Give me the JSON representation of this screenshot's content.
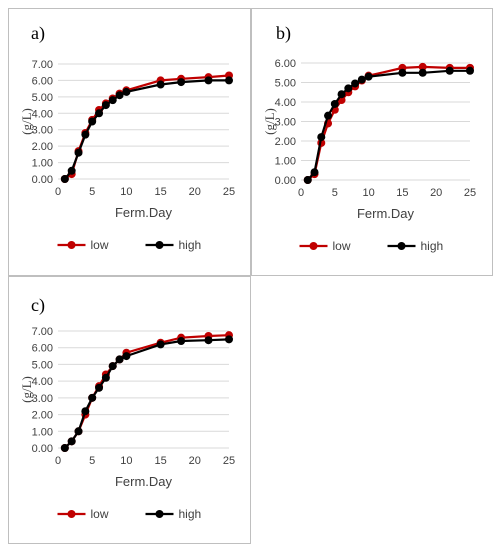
{
  "chart_data": [
    {
      "panel": "a)",
      "type": "line",
      "xlabel": "Ferm.Day",
      "ylabel": "(g/L)",
      "xlim": [
        0,
        25
      ],
      "ylim": [
        0,
        7
      ],
      "xticks": [
        "0",
        "5",
        "10",
        "15",
        "20",
        "25"
      ],
      "yticks": [
        "0.00",
        "1.00",
        "2.00",
        "3.00",
        "4.00",
        "5.00",
        "6.00",
        "7.00"
      ],
      "legend": "bottom",
      "grid": true,
      "series": [
        {
          "name": "low",
          "color": "#c00000",
          "x": [
            1,
            2,
            3,
            4,
            5,
            6,
            7,
            8,
            9,
            10,
            15,
            18,
            22,
            25
          ],
          "y": [
            0.0,
            0.3,
            1.7,
            2.8,
            3.6,
            4.2,
            4.6,
            4.9,
            5.2,
            5.4,
            6.0,
            6.1,
            6.2,
            6.3
          ]
        },
        {
          "name": "high",
          "color": "#000000",
          "x": [
            1,
            2,
            3,
            4,
            5,
            6,
            7,
            8,
            9,
            10,
            15,
            18,
            22,
            25
          ],
          "y": [
            0.0,
            0.5,
            1.6,
            2.7,
            3.5,
            4.0,
            4.5,
            4.8,
            5.1,
            5.3,
            5.75,
            5.9,
            6.0,
            6.0
          ]
        }
      ]
    },
    {
      "panel": "b)",
      "type": "line",
      "xlabel": "Ferm.Day",
      "ylabel": "(g/L)",
      "xlim": [
        0,
        25
      ],
      "ylim": [
        0,
        6
      ],
      "xticks": [
        "0",
        "5",
        "10",
        "15",
        "20",
        "25"
      ],
      "yticks": [
        "0.00",
        "1.00",
        "2.00",
        "3.00",
        "4.00",
        "5.00",
        "6.00"
      ],
      "legend": "bottom",
      "grid": true,
      "series": [
        {
          "name": "low",
          "color": "#c00000",
          "x": [
            1,
            2,
            3,
            4,
            5,
            6,
            7,
            8,
            9,
            10,
            15,
            18,
            22,
            25
          ],
          "y": [
            0.0,
            0.3,
            1.9,
            2.9,
            3.6,
            4.1,
            4.5,
            4.8,
            5.1,
            5.35,
            5.75,
            5.8,
            5.75,
            5.75
          ]
        },
        {
          "name": "high",
          "color": "#000000",
          "x": [
            1,
            2,
            3,
            4,
            5,
            6,
            7,
            8,
            9,
            10,
            15,
            18,
            22,
            25
          ],
          "y": [
            0.0,
            0.4,
            2.2,
            3.3,
            3.9,
            4.4,
            4.7,
            4.95,
            5.15,
            5.3,
            5.5,
            5.5,
            5.6,
            5.6
          ]
        }
      ]
    },
    {
      "panel": "c)",
      "type": "line",
      "xlabel": "Ferm.Day",
      "ylabel": "(g/L)",
      "xlim": [
        0,
        25
      ],
      "ylim": [
        0,
        7
      ],
      "xticks": [
        "0",
        "5",
        "10",
        "15",
        "20",
        "25"
      ],
      "yticks": [
        "0.00",
        "1.00",
        "2.00",
        "3.00",
        "4.00",
        "5.00",
        "6.00",
        "7.00"
      ],
      "legend": "bottom",
      "grid": true,
      "series": [
        {
          "name": "low",
          "color": "#c00000",
          "x": [
            1,
            2,
            3,
            4,
            5,
            6,
            7,
            8,
            9,
            10,
            15,
            18,
            22,
            25
          ],
          "y": [
            0.0,
            0.4,
            1.0,
            2.0,
            3.0,
            3.7,
            4.4,
            4.9,
            5.3,
            5.7,
            6.3,
            6.6,
            6.7,
            6.75
          ]
        },
        {
          "name": "high",
          "color": "#000000",
          "x": [
            1,
            2,
            3,
            4,
            5,
            6,
            7,
            8,
            9,
            10,
            15,
            18,
            22,
            25
          ],
          "y": [
            0.0,
            0.4,
            1.0,
            2.2,
            3.0,
            3.6,
            4.2,
            4.9,
            5.3,
            5.5,
            6.2,
            6.4,
            6.45,
            6.5
          ]
        }
      ]
    }
  ]
}
